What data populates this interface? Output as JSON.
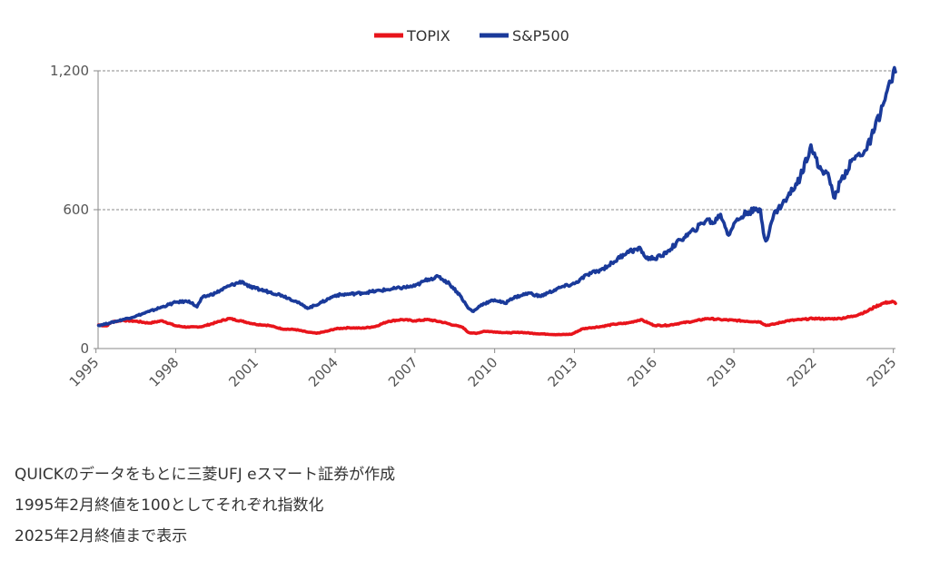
{
  "chart_data": {
    "type": "line",
    "title": "",
    "xlabel": "",
    "ylabel": "",
    "xlim": [
      1995.08,
      2025.08
    ],
    "ylim": [
      0,
      1200
    ],
    "y_ticks": [
      0,
      600,
      1200
    ],
    "y_tick_labels": [
      "0",
      "600",
      "1,200"
    ],
    "x_ticks": [
      1995,
      1998,
      2001,
      2004,
      2007,
      2010,
      2013,
      2016,
      2019,
      2022,
      2025
    ],
    "x_tick_labels": [
      "1995",
      "1998",
      "2001",
      "2004",
      "2007",
      "2010",
      "2013",
      "2016",
      "2019",
      "2022",
      "2025"
    ],
    "grid": "horizontal dashed at 600 and 1,200",
    "legend_position": "top-center",
    "series": [
      {
        "name": "TOPIX",
        "color": "#e8141b",
        "x": [
          1995.1,
          1995.4,
          1995.6,
          1996.0,
          1996.5,
          1997.0,
          1997.5,
          1998.0,
          1998.5,
          1999.0,
          1999.5,
          2000.0,
          2000.5,
          2001.0,
          2001.5,
          2002.0,
          2002.5,
          2003.0,
          2003.3,
          2003.7,
          2004.0,
          2004.5,
          2005.0,
          2005.5,
          2006.0,
          2006.5,
          2007.0,
          2007.5,
          2008.0,
          2008.5,
          2008.8,
          2009.0,
          2009.3,
          2009.6,
          2010.0,
          2010.5,
          2011.0,
          2011.5,
          2012.0,
          2012.5,
          2012.9,
          2013.3,
          2013.6,
          2014.0,
          2014.5,
          2015.0,
          2015.5,
          2016.0,
          2016.5,
          2017.0,
          2017.5,
          2018.0,
          2018.5,
          2019.0,
          2019.5,
          2020.0,
          2020.2,
          2020.5,
          2021.0,
          2021.5,
          2022.0,
          2022.5,
          2023.0,
          2023.5,
          2024.0,
          2024.3,
          2024.6,
          2024.8,
          2025.0,
          2025.08
        ],
        "y": [
          102,
          98,
          115,
          122,
          118,
          110,
          120,
          98,
          92,
          95,
          112,
          130,
          118,
          105,
          100,
          85,
          82,
          70,
          66,
          75,
          85,
          90,
          88,
          95,
          118,
          125,
          120,
          125,
          115,
          100,
          92,
          70,
          65,
          75,
          72,
          68,
          70,
          65,
          62,
          60,
          62,
          85,
          90,
          95,
          105,
          110,
          125,
          100,
          100,
          110,
          118,
          130,
          125,
          122,
          118,
          115,
          100,
          105,
          120,
          125,
          130,
          128,
          130,
          140,
          160,
          180,
          195,
          200,
          202,
          195
        ]
      },
      {
        "name": "S&P500",
        "color": "#1a3a9a",
        "x": [
          1995.1,
          1995.5,
          1996.0,
          1996.5,
          1997.0,
          1997.5,
          1998.0,
          1998.5,
          1998.8,
          1999.0,
          1999.5,
          2000.0,
          2000.5,
          2000.8,
          2001.0,
          2001.5,
          2002.0,
          2002.5,
          2002.8,
          2003.0,
          2003.5,
          2004.0,
          2005.0,
          2006.0,
          2007.0,
          2007.5,
          2007.9,
          2008.3,
          2008.7,
          2009.0,
          2009.2,
          2009.5,
          2010.0,
          2010.4,
          2010.6,
          2011.0,
          2011.3,
          2011.7,
          2012.0,
          2012.5,
          2013.0,
          2013.5,
          2014.0,
          2014.5,
          2015.0,
          2015.5,
          2015.7,
          2016.0,
          2016.3,
          2016.5,
          2017.0,
          2017.5,
          2018.0,
          2018.2,
          2018.5,
          2018.8,
          2019.0,
          2019.5,
          2020.0,
          2020.15,
          2020.25,
          2020.5,
          2021.0,
          2021.5,
          2021.9,
          2022.2,
          2022.5,
          2022.8,
          2023.0,
          2023.5,
          2024.0,
          2024.3,
          2024.6,
          2024.9,
          2025.0,
          2025.08
        ],
        "y": [
          100,
          110,
          125,
          140,
          160,
          180,
          200,
          205,
          180,
          220,
          240,
          270,
          290,
          265,
          260,
          245,
          230,
          205,
          185,
          175,
          200,
          230,
          240,
          255,
          270,
          300,
          310,
          280,
          230,
          175,
          160,
          190,
          210,
          195,
          215,
          230,
          240,
          225,
          240,
          265,
          280,
          320,
          340,
          375,
          420,
          430,
          390,
          390,
          400,
          420,
          470,
          510,
          560,
          540,
          580,
          490,
          540,
          590,
          600,
          480,
          470,
          580,
          650,
          740,
          880,
          780,
          760,
          650,
          720,
          820,
          860,
          950,
          1050,
          1150,
          1200,
          1195
        ]
      }
    ]
  },
  "notes": [
    "QUICKのデータをもとに三菱UFJ eスマート証券が作成",
    "1995年2月終値を100としてそれぞれ指数化",
    "2025年2月終値まで表示"
  ]
}
